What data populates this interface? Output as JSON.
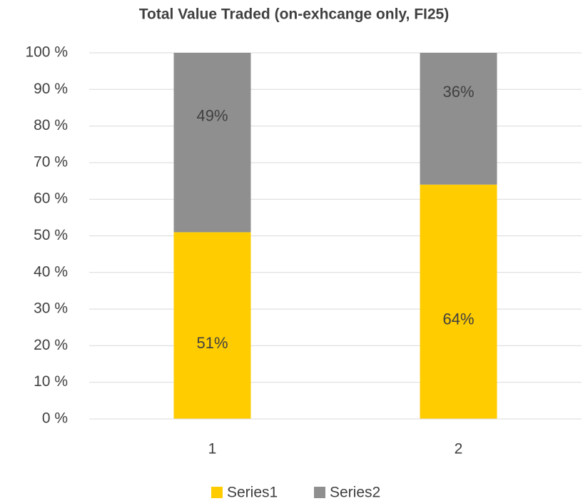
{
  "chart_data": {
    "type": "bar",
    "stacked": true,
    "title": "Total Value Traded (on-exhcange only, FI25)",
    "categories": [
      "1",
      "2"
    ],
    "series": [
      {
        "name": "Series1",
        "color": "#ffcc00",
        "values": [
          51,
          64
        ],
        "value_labels": [
          "51%",
          "64%"
        ]
      },
      {
        "name": "Series2",
        "color": "#8f8f8f",
        "values": [
          49,
          36
        ],
        "value_labels": [
          "49%",
          "36%"
        ]
      }
    ],
    "ylim": [
      0,
      100
    ],
    "yticks": [
      {
        "value": 0,
        "label": "0 %"
      },
      {
        "value": 10,
        "label": "10 %"
      },
      {
        "value": 20,
        "label": "20 %"
      },
      {
        "value": 30,
        "label": "30 %"
      },
      {
        "value": 40,
        "label": "40 %"
      },
      {
        "value": 50,
        "label": "50 %"
      },
      {
        "value": 60,
        "label": "60 %"
      },
      {
        "value": 70,
        "label": "70 %"
      },
      {
        "value": 80,
        "label": "80 %"
      },
      {
        "value": 90,
        "label": "90 %"
      },
      {
        "value": 100,
        "label": "100 %"
      }
    ],
    "grid": true,
    "legend": "bottom"
  }
}
